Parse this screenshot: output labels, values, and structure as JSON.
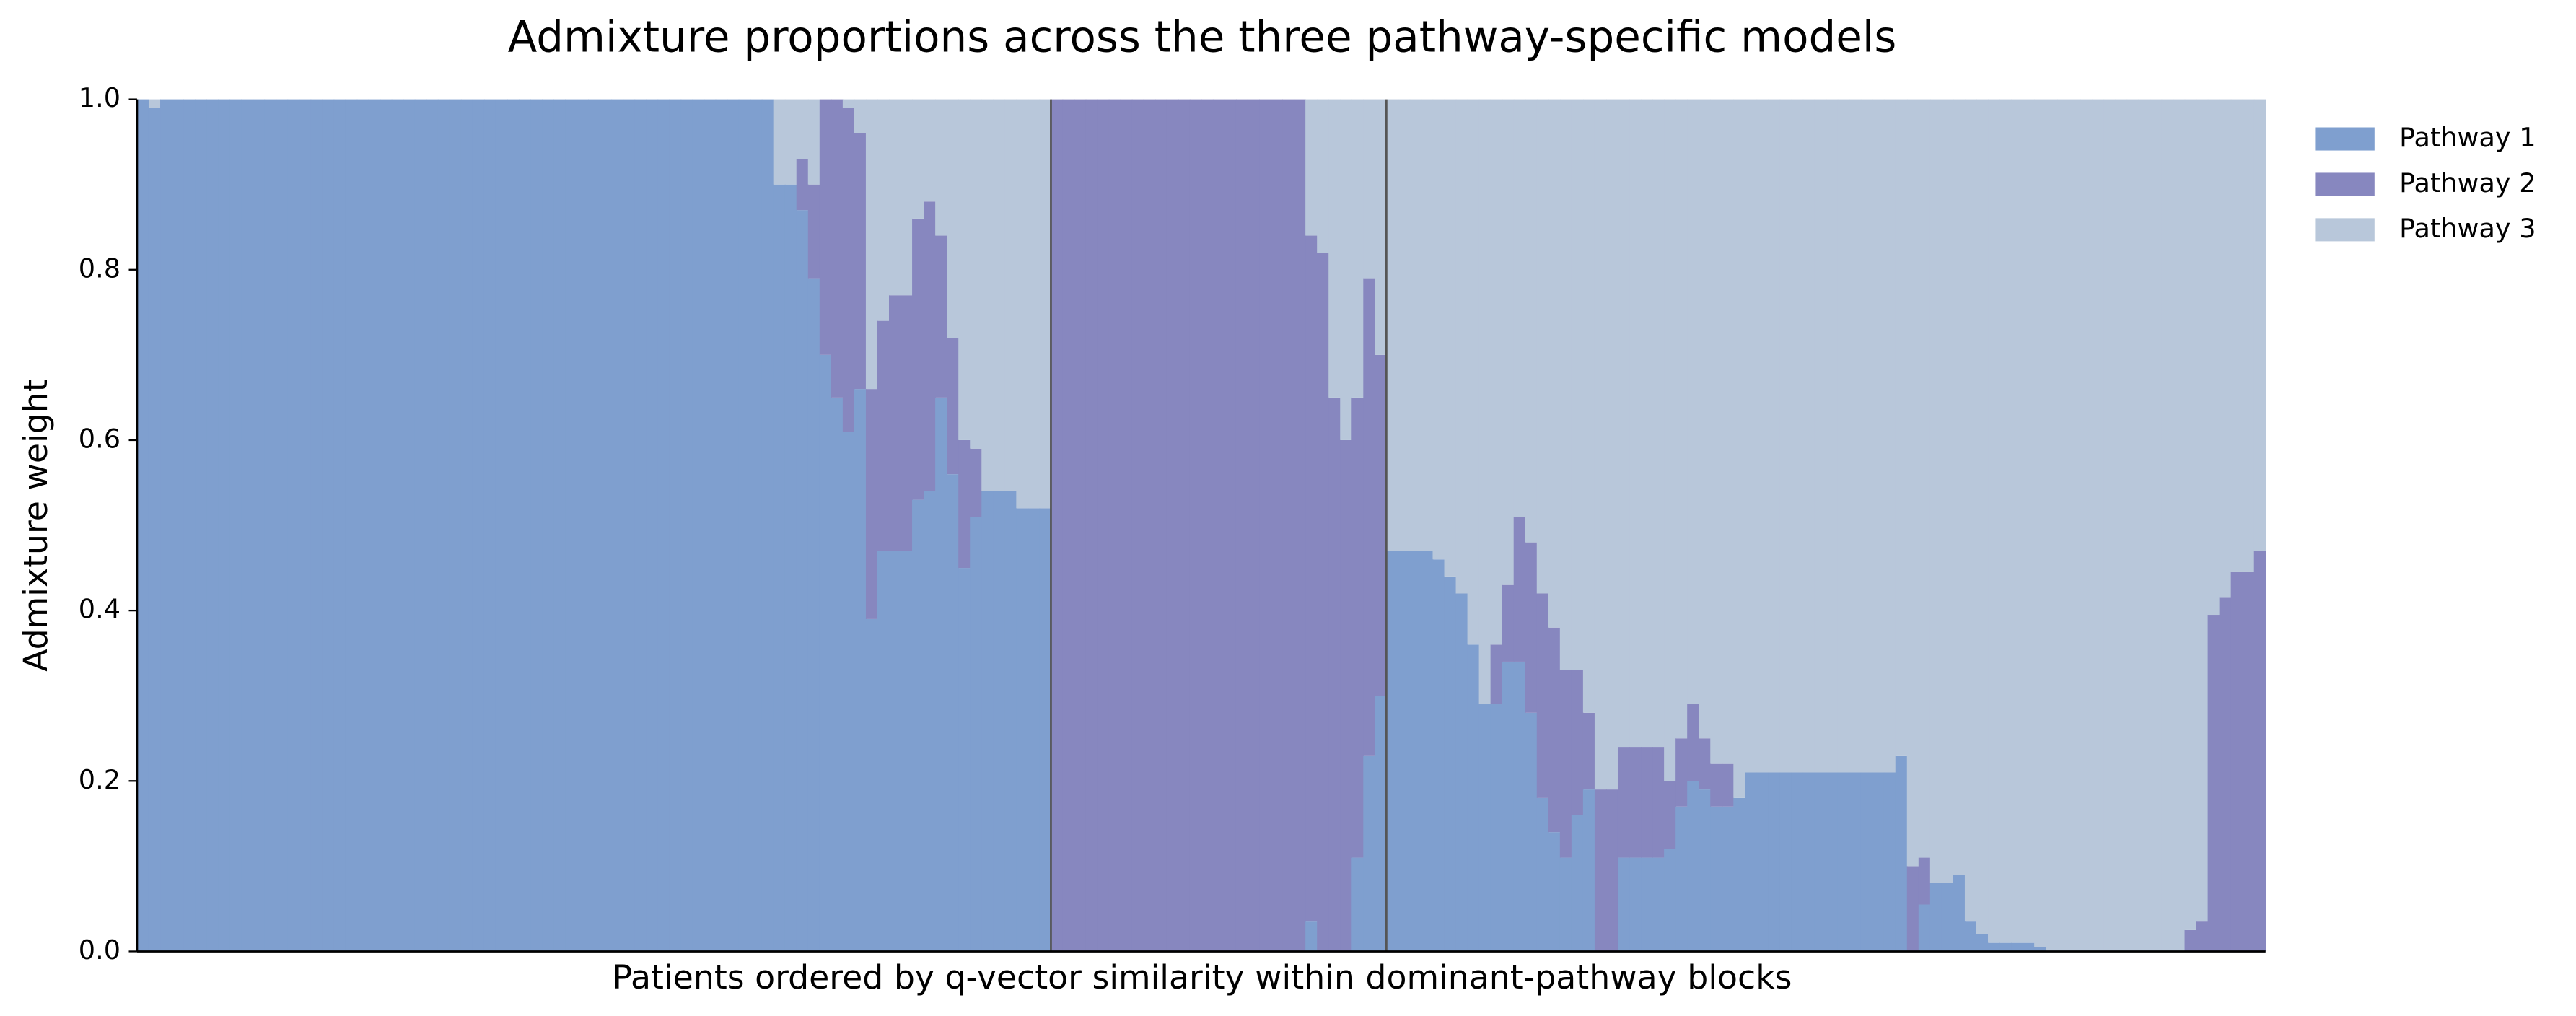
{
  "chart_data": {
    "type": "stacked_bar",
    "title": "Admixture proportions across the three pathway-specific models",
    "x_label": "Patients ordered by q-vector similarity within dominant-pathway blocks",
    "y_label": "Admixture weight",
    "ylim": [
      0,
      1
    ],
    "yticks": [
      {
        "value": 0,
        "label": "0.0"
      },
      0.2,
      0.4,
      0.6,
      0.8,
      {
        "value": 1,
        "label": "1.0"
      }
    ],
    "legend": "upper right outside",
    "series": [
      {
        "name": "Pathway 1",
        "color": "#7f9fcf",
        "values": [
          1,
          0.99,
          1,
          1,
          1,
          1,
          1,
          1,
          1,
          1,
          1,
          1,
          1,
          1,
          1,
          1,
          1,
          1,
          1,
          1,
          1,
          1,
          1,
          1,
          1,
          1,
          1,
          1,
          1,
          1,
          1,
          1,
          1,
          1,
          1,
          1,
          1,
          1,
          1,
          1,
          1,
          1,
          1,
          1,
          1,
          1,
          1,
          1,
          1,
          1,
          1,
          1,
          1,
          1,
          1,
          0.9,
          0.9,
          0.87,
          0.79,
          0.7,
          0.65,
          0.61,
          0.66,
          0.39,
          0.47,
          0.47,
          0.47,
          0.53,
          0.54,
          0.65,
          0.56,
          0.45,
          0.51,
          0.54,
          0.54,
          0.54,
          0.52,
          0.52,
          0.52,
          0,
          0,
          0,
          0,
          0,
          0,
          0,
          0,
          0,
          0,
          0,
          0,
          0,
          0,
          0,
          0,
          0,
          0,
          0,
          0,
          0,
          0,
          0.035,
          0,
          0,
          0,
          0.11,
          0.23,
          0.3,
          0.47,
          0.47,
          0.47,
          0.47,
          0.46,
          0.44,
          0.42,
          0.36,
          0.29,
          0.29,
          0.34,
          0.34,
          0.28,
          0.18,
          0.14,
          0.11,
          0.16,
          0.19,
          0,
          0,
          0.11,
          0.11,
          0.11,
          0.11,
          0.12,
          0.17,
          0.2,
          0.19,
          0.17,
          0.17,
          0.18,
          0.21,
          0.21,
          0.21,
          0.21,
          0.21,
          0.21,
          0.21,
          0.21,
          0.21,
          0.21,
          0.21,
          0.21,
          0.21,
          0.23,
          0,
          0.055,
          0.08,
          0.08,
          0.09,
          0.035,
          0.02,
          0.01,
          0.01,
          0.01,
          0.01,
          0.005,
          0,
          0,
          0,
          0,
          0,
          0,
          0,
          0,
          0,
          0,
          0,
          0,
          0,
          0,
          0,
          0,
          0,
          0,
          0
        ]
      },
      {
        "name": "Pathway 2",
        "color": "#8787bf",
        "values": [
          0,
          0,
          0,
          0,
          0,
          0,
          0,
          0,
          0,
          0,
          0,
          0,
          0,
          0,
          0,
          0,
          0,
          0,
          0,
          0,
          0,
          0,
          0,
          0,
          0,
          0,
          0,
          0,
          0,
          0,
          0,
          0,
          0,
          0,
          0,
          0,
          0,
          0,
          0,
          0,
          0,
          0,
          0,
          0,
          0,
          0,
          0,
          0,
          0,
          0,
          0,
          0,
          0,
          0,
          0,
          0,
          0,
          0.06,
          0.11,
          0.3,
          0.35,
          0.38,
          0.3,
          0.27,
          0.27,
          0.3,
          0.3,
          0.33,
          0.34,
          0.19,
          0.16,
          0.15,
          0.08,
          0,
          0,
          0,
          0,
          0,
          0,
          1,
          1,
          1,
          1,
          1,
          1,
          1,
          1,
          1,
          1,
          1,
          1,
          1,
          1,
          1,
          1,
          1,
          1,
          1,
          1,
          1,
          1,
          0.805,
          0.82,
          0.65,
          0.6,
          0.54,
          0.56,
          0.4,
          0,
          0,
          0,
          0,
          0,
          0,
          0,
          0,
          0,
          0.07,
          0.09,
          0.17,
          0.2,
          0.24,
          0.24,
          0.22,
          0.17,
          0.09,
          0.19,
          0.19,
          0.13,
          0.13,
          0.13,
          0.13,
          0.08,
          0.08,
          0.09,
          0.06,
          0.05,
          0.05,
          0,
          0,
          0,
          0,
          0,
          0,
          0,
          0,
          0,
          0,
          0,
          0,
          0,
          0,
          0,
          0.1,
          0.055,
          0,
          0,
          0,
          0,
          0,
          0,
          0,
          0,
          0,
          0,
          0,
          0,
          0,
          0,
          0,
          0,
          0,
          0,
          0,
          0,
          0,
          0,
          0.025,
          0.035,
          0.395,
          0.415,
          0.445,
          0.445,
          0.47
        ]
      },
      {
        "name": "Pathway 3",
        "color": "#b8c7da",
        "values": [
          0,
          0.01,
          0,
          0,
          0,
          0,
          0,
          0,
          0,
          0,
          0,
          0,
          0,
          0,
          0,
          0,
          0,
          0,
          0,
          0,
          0,
          0,
          0,
          0,
          0,
          0,
          0,
          0,
          0,
          0,
          0,
          0,
          0,
          0,
          0,
          0,
          0,
          0,
          0,
          0,
          0,
          0,
          0,
          0,
          0,
          0,
          0,
          0,
          0,
          0,
          0,
          0,
          0,
          0,
          0,
          0.1,
          0.1,
          0.07,
          0.1,
          0,
          0,
          0.01,
          0.04,
          0.34,
          0.26,
          0.23,
          0.23,
          0.14,
          0.12,
          0.16,
          0.28,
          0.4,
          0.41,
          0.46,
          0.46,
          0.46,
          0.48,
          0.48,
          0.48,
          0,
          0,
          0,
          0,
          0,
          0,
          0,
          0,
          0,
          0,
          0,
          0,
          0,
          0,
          0,
          0,
          0,
          0,
          0,
          0,
          0,
          0,
          0.16,
          0.18,
          0.35,
          0.4,
          0.35,
          0.21,
          0.3,
          0.53,
          0.53,
          0.53,
          0.53,
          0.54,
          0.56,
          0.58,
          0.64,
          0.71,
          0.64,
          0.57,
          0.49,
          0.52,
          0.58,
          0.62,
          0.67,
          0.67,
          0.72,
          0.81,
          0.81,
          0.76,
          0.76,
          0.76,
          0.76,
          0.8,
          0.75,
          0.71,
          0.75,
          0.78,
          0.78,
          0.82,
          0.79,
          0.79,
          0.79,
          0.79,
          0.79,
          0.79,
          0.79,
          0.79,
          0.79,
          0.79,
          0.79,
          0.79,
          0.79,
          0.77,
          0.9,
          0.89,
          0.92,
          0.92,
          0.91,
          0.965,
          0.98,
          0.99,
          0.99,
          0.99,
          0.99,
          0.995,
          1,
          1,
          1,
          1,
          1,
          1,
          1,
          1,
          1,
          1,
          1,
          1,
          0.975,
          0.965,
          0.605,
          0.585,
          0.555,
          0.555,
          0.53
        ]
      }
    ]
  }
}
